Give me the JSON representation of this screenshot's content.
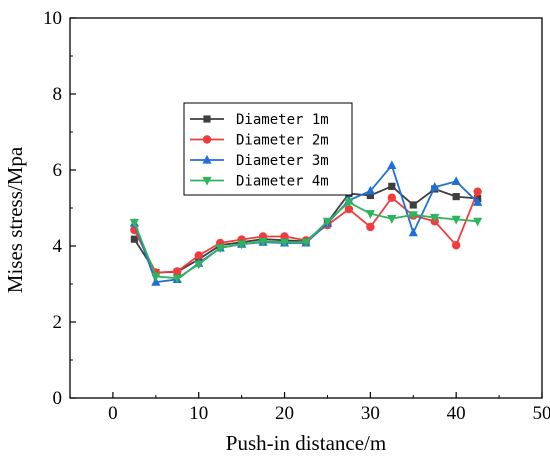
{
  "chart_data": {
    "type": "line",
    "title": "",
    "xlabel": "Push-in distance/m",
    "ylabel": "Mises stress/Mpa",
    "xlim": [
      -5,
      50
    ],
    "ylim": [
      0,
      10
    ],
    "xticks": [
      0,
      10,
      20,
      30,
      40,
      50
    ],
    "yticks": [
      0,
      2,
      4,
      6,
      8,
      10
    ],
    "grid": false,
    "legend_position": "upper-left-center",
    "x": [
      2.5,
      5,
      7.5,
      10,
      12.5,
      15,
      17.5,
      20,
      22.5,
      25,
      27.5,
      30,
      32.5,
      35,
      37.5,
      40,
      42.5
    ],
    "series": [
      {
        "name": "Diameter 1m",
        "color": "#3f3f3f",
        "marker": "square",
        "values": [
          4.18,
          3.3,
          3.32,
          3.65,
          4.02,
          4.1,
          4.18,
          4.15,
          4.12,
          4.62,
          5.38,
          5.33,
          5.57,
          5.08,
          5.5,
          5.3,
          5.25
        ]
      },
      {
        "name": "Diameter 2m",
        "color": "#f03c3c",
        "marker": "circle",
        "values": [
          4.42,
          3.3,
          3.33,
          3.75,
          4.08,
          4.17,
          4.25,
          4.25,
          4.15,
          4.55,
          4.97,
          4.5,
          5.27,
          4.8,
          4.65,
          4.02,
          5.43
        ]
      },
      {
        "name": "Diameter 3m",
        "color": "#1f6fd6",
        "marker": "triangle-up",
        "values": [
          4.6,
          3.05,
          3.12,
          3.55,
          3.95,
          4.05,
          4.1,
          4.08,
          4.08,
          4.6,
          5.2,
          5.45,
          6.12,
          4.35,
          5.55,
          5.7,
          5.15
        ]
      },
      {
        "name": "Diameter 4m",
        "color": "#2fb35b",
        "marker": "triangle-down",
        "values": [
          4.62,
          3.2,
          3.15,
          3.52,
          3.95,
          4.05,
          4.12,
          4.1,
          4.1,
          4.65,
          5.15,
          4.85,
          4.72,
          4.82,
          4.75,
          4.7,
          4.65
        ]
      }
    ]
  }
}
